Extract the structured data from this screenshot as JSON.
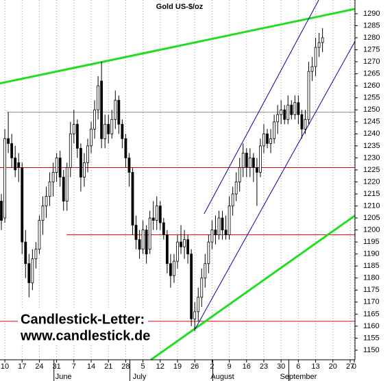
{
  "chart_data": {
    "type": "candlestick",
    "title": "Gold US-$/oz",
    "open": [
      1212,
      1205,
      1238,
      1236,
      1230,
      1228,
      1226,
      1195,
      1186,
      1178,
      1188,
      1192,
      1204,
      1210,
      1214,
      1220,
      1224,
      1230,
      1222,
      1212,
      1226,
      1240,
      1244,
      1234,
      1222,
      1228,
      1235,
      1242,
      1250,
      1262,
      1238,
      1244,
      1240,
      1246,
      1254,
      1244,
      1238,
      1230,
      1224,
      1202,
      1196,
      1192,
      1200,
      1192,
      1205,
      1204,
      1210,
      1203,
      1198,
      1186,
      1181,
      1187,
      1195,
      1193,
      1196,
      1190,
      1163,
      1166,
      1172,
      1180,
      1186,
      1195,
      1200,
      1198,
      1205,
      1200,
      1198,
      1210,
      1215,
      1220,
      1226,
      1232,
      1226,
      1230,
      1226,
      1224,
      1235,
      1240,
      1236,
      1238,
      1245,
      1248,
      1250,
      1246,
      1252,
      1248,
      1253,
      1248,
      1242,
      1246,
      1266,
      1268,
      1276,
      1278
    ],
    "high": [
      1215,
      1242,
      1249,
      1240,
      1235,
      1232,
      1228,
      1200,
      1190,
      1192,
      1195,
      1206,
      1214,
      1218,
      1224,
      1228,
      1232,
      1233,
      1225,
      1228,
      1245,
      1250,
      1246,
      1236,
      1232,
      1238,
      1245,
      1254,
      1264,
      1270,
      1248,
      1248,
      1250,
      1258,
      1256,
      1246,
      1240,
      1232,
      1226,
      1206,
      1200,
      1204,
      1202,
      1208,
      1212,
      1214,
      1212,
      1205,
      1200,
      1190,
      1190,
      1198,
      1202,
      1200,
      1198,
      1192,
      1170,
      1176,
      1184,
      1190,
      1198,
      1204,
      1206,
      1208,
      1208,
      1206,
      1214,
      1218,
      1224,
      1230,
      1236,
      1234,
      1234,
      1232,
      1230,
      1238,
      1244,
      1242,
      1242,
      1248,
      1252,
      1254,
      1252,
      1256,
      1254,
      1256,
      1256,
      1250,
      1250,
      1270,
      1272,
      1280,
      1282,
      1284
    ],
    "low": [
      1200,
      1203,
      1232,
      1226,
      1222,
      1220,
      1190,
      1180,
      1172,
      1175,
      1184,
      1190,
      1198,
      1205,
      1210,
      1214,
      1220,
      1218,
      1208,
      1208,
      1222,
      1236,
      1230,
      1216,
      1218,
      1224,
      1232,
      1238,
      1246,
      1234,
      1234,
      1236,
      1238,
      1242,
      1240,
      1234,
      1226,
      1218,
      1198,
      1192,
      1188,
      1190,
      1186,
      1190,
      1200,
      1200,
      1200,
      1196,
      1182,
      1176,
      1178,
      1184,
      1190,
      1188,
      1186,
      1160,
      1158,
      1162,
      1168,
      1176,
      1182,
      1192,
      1194,
      1196,
      1196,
      1196,
      1196,
      1206,
      1212,
      1216,
      1222,
      1222,
      1222,
      1220,
      1210,
      1222,
      1232,
      1234,
      1232,
      1236,
      1240,
      1244,
      1244,
      1244,
      1246,
      1246,
      1244,
      1238,
      1240,
      1244,
      1262,
      1264,
      1272,
      1274
    ],
    "close": [
      1204,
      1238,
      1236,
      1230,
      1225,
      1226,
      1195,
      1186,
      1178,
      1188,
      1192,
      1204,
      1210,
      1214,
      1220,
      1224,
      1230,
      1222,
      1212,
      1226,
      1240,
      1244,
      1234,
      1222,
      1228,
      1235,
      1242,
      1250,
      1260,
      1238,
      1244,
      1240,
      1246,
      1254,
      1244,
      1238,
      1230,
      1224,
      1202,
      1196,
      1192,
      1200,
      1190,
      1205,
      1204,
      1210,
      1203,
      1198,
      1186,
      1181,
      1187,
      1195,
      1193,
      1196,
      1190,
      1163,
      1166,
      1172,
      1180,
      1186,
      1195,
      1200,
      1198,
      1205,
      1200,
      1198,
      1210,
      1215,
      1220,
      1226,
      1232,
      1226,
      1230,
      1226,
      1224,
      1235,
      1240,
      1236,
      1238,
      1245,
      1248,
      1250,
      1246,
      1252,
      1248,
      1253,
      1248,
      1242,
      1246,
      1266,
      1268,
      1276,
      1278,
      1280
    ],
    "up_color": "#ffffff",
    "down_color": "#000000",
    "xlim": [
      -0.4,
      102.4
    ],
    "ylim": [
      1146,
      1295.7
    ],
    "xticks": [
      {
        "value": 1,
        "label": "10"
      },
      {
        "value": 6,
        "label": "17"
      },
      {
        "value": 11,
        "label": "24"
      },
      {
        "value": 16,
        "label": "31"
      },
      {
        "value": 21,
        "label": "7"
      },
      {
        "value": 26,
        "label": "14"
      },
      {
        "value": 31,
        "label": "21"
      },
      {
        "value": 36,
        "label": "28"
      },
      {
        "value": 41,
        "label": "5"
      },
      {
        "value": 46,
        "label": "12"
      },
      {
        "value": 51,
        "label": "19"
      },
      {
        "value": 56,
        "label": "26"
      },
      {
        "value": 61,
        "label": "2"
      },
      {
        "value": 66,
        "label": "9"
      },
      {
        "value": 71,
        "label": "16"
      },
      {
        "value": 76,
        "label": "23"
      },
      {
        "value": 81,
        "label": "30"
      },
      {
        "value": 86,
        "label": "6"
      },
      {
        "value": 91,
        "label": "13"
      },
      {
        "value": 96,
        "label": "20"
      },
      {
        "value": 101,
        "label": "27"
      },
      {
        "value": 102.2,
        "label": "0"
      }
    ],
    "month_ticks": [
      {
        "value": 18,
        "label": "June"
      },
      {
        "value": 40,
        "label": "July"
      },
      {
        "value": 64,
        "label": "August"
      },
      {
        "value": 86,
        "label": "September"
      }
    ],
    "yticks": [
      1150,
      1155,
      1160,
      1165,
      1170,
      1175,
      1180,
      1185,
      1190,
      1195,
      1200,
      1205,
      1210,
      1215,
      1220,
      1225,
      1230,
      1235,
      1240,
      1245,
      1250,
      1255,
      1260,
      1265,
      1270,
      1275,
      1280,
      1285,
      1290
    ],
    "grid": true,
    "lines": [
      {
        "color": "#888888",
        "x": [
          1.6,
          102.4
        ],
        "y": [
          1249,
          1249
        ]
      },
      {
        "color": "#dd0000",
        "x": [
          -0.4,
          102.4
        ],
        "y": [
          1226,
          1226
        ]
      },
      {
        "color": "#dd0000",
        "x": [
          18.9,
          102.4
        ],
        "y": [
          1198,
          1198
        ]
      },
      {
        "color": "#dd0000",
        "x": [
          -0.4,
          102.4
        ],
        "y": [
          1162,
          1162
        ]
      },
      {
        "color": "#22dd22",
        "x": [
          -0.4,
          102.4
        ],
        "y": [
          1261,
          1292
        ]
      },
      {
        "color": "#22dd22",
        "x": [
          43.3,
          102.4
        ],
        "y": [
          1146,
          1206
        ]
      },
      {
        "color": "#0000aa",
        "x": [
          58.7,
          91.9
        ],
        "y": [
          1206.7,
          1295.7
        ]
      },
      {
        "color": "#0000aa",
        "x": [
          56.1,
          102.4
        ],
        "y": [
          1158.8,
          1278.5
        ]
      }
    ],
    "annotations": [
      "Candlestick-Letter:",
      "www.candlestick.de"
    ]
  }
}
